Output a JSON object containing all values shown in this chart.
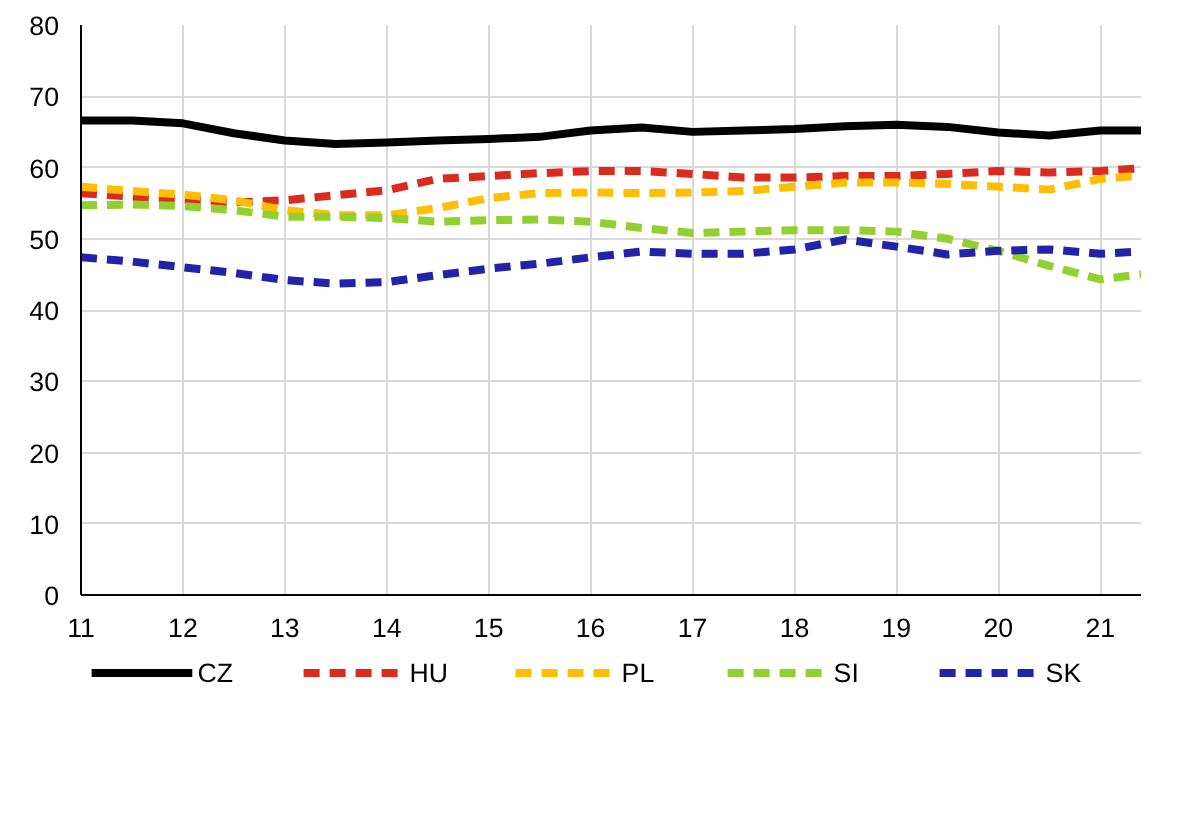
{
  "chart_data": {
    "type": "line",
    "x": [
      11,
      11.5,
      12,
      12.5,
      13,
      13.5,
      14,
      14.5,
      15,
      15.5,
      16,
      16.5,
      17,
      17.5,
      18,
      18.5,
      19,
      19.5,
      20,
      20.5,
      21,
      21.4
    ],
    "series": [
      {
        "name": "CZ",
        "color": "#000000",
        "line_style": "solid",
        "values": [
          66.6,
          66.6,
          66.2,
          64.8,
          63.8,
          63.3,
          63.5,
          63.8,
          64,
          64.3,
          65.2,
          65.6,
          65,
          65.2,
          65.4,
          65.8,
          66,
          65.7,
          64.9,
          64.5,
          65.2,
          65.2
        ]
      },
      {
        "name": "HU",
        "color": "#dc2a1f",
        "line_style": "dashed",
        "values": [
          56.4,
          55.9,
          55.5,
          55.1,
          55.4,
          56.1,
          56.8,
          58.4,
          58.8,
          59.2,
          59.5,
          59.5,
          59.1,
          58.6,
          58.6,
          58.8,
          58.8,
          59.1,
          59.5,
          59.3,
          59.5,
          59.9
        ]
      },
      {
        "name": "PL",
        "color": "#ffbf00",
        "line_style": "dashed",
        "values": [
          57.3,
          56.7,
          56.2,
          55.4,
          54,
          53.3,
          53.3,
          54.3,
          55.7,
          56.4,
          56.5,
          56.4,
          56.5,
          56.7,
          57.3,
          57.9,
          57.9,
          57.7,
          57.3,
          56.9,
          58.4,
          58.9
        ]
      },
      {
        "name": "SI",
        "color": "#92d030",
        "line_style": "dashed",
        "values": [
          54.7,
          54.8,
          54.6,
          54,
          53.1,
          53.1,
          52.9,
          52.4,
          52.6,
          52.7,
          52.4,
          51.5,
          50.8,
          51,
          51.2,
          51.2,
          51,
          50,
          48.3,
          46.2,
          44.3,
          45
        ]
      },
      {
        "name": "SK",
        "color": "#2222aa",
        "line_style": "dashed",
        "values": [
          47.4,
          46.8,
          46,
          45.2,
          44.2,
          43.7,
          43.9,
          44.9,
          45.8,
          46.5,
          47.4,
          48.2,
          47.9,
          47.9,
          48.5,
          49.9,
          48.9,
          47.8,
          48.3,
          48.5,
          47.9,
          48.2
        ]
      }
    ],
    "xlim": [
      11,
      21.4
    ],
    "xticks": [
      11,
      12,
      13,
      14,
      15,
      16,
      17,
      18,
      19,
      20,
      21
    ],
    "ylim": [
      0,
      80
    ],
    "yticks": [
      0,
      10,
      20,
      30,
      40,
      50,
      60,
      70,
      80
    ],
    "grid": true,
    "legend": "bottom",
    "marker": "none"
  }
}
